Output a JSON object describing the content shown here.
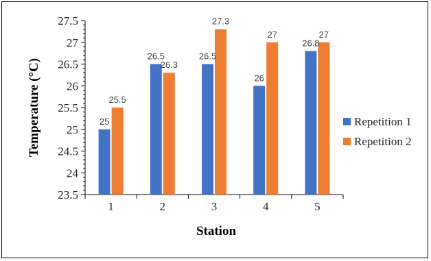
{
  "chart_data": {
    "type": "bar",
    "title": "",
    "xlabel": "Station",
    "ylabel": "Temperature (°C)",
    "categories": [
      "1",
      "2",
      "3",
      "4",
      "5"
    ],
    "series": [
      {
        "name": "Repetition 1",
        "color": "#4472C4",
        "values": [
          25,
          26.5,
          26.5,
          26,
          26.8
        ]
      },
      {
        "name": "Repetition 2",
        "color": "#ED7D31",
        "values": [
          25.5,
          26.3,
          27.3,
          27,
          27
        ]
      }
    ],
    "data_labels": [
      [
        "25",
        "26.5",
        "26.5",
        "26",
        "26.8"
      ],
      [
        "25.5",
        "26.3",
        "27.3",
        "27",
        "27"
      ]
    ],
    "ylim": [
      23.5,
      27.5
    ],
    "yticks": [
      "23.5",
      "24",
      "24.5",
      "25",
      "25.5",
      "26",
      "26.5",
      "27",
      "27.5"
    ],
    "grid": false,
    "legend_position": "right"
  }
}
